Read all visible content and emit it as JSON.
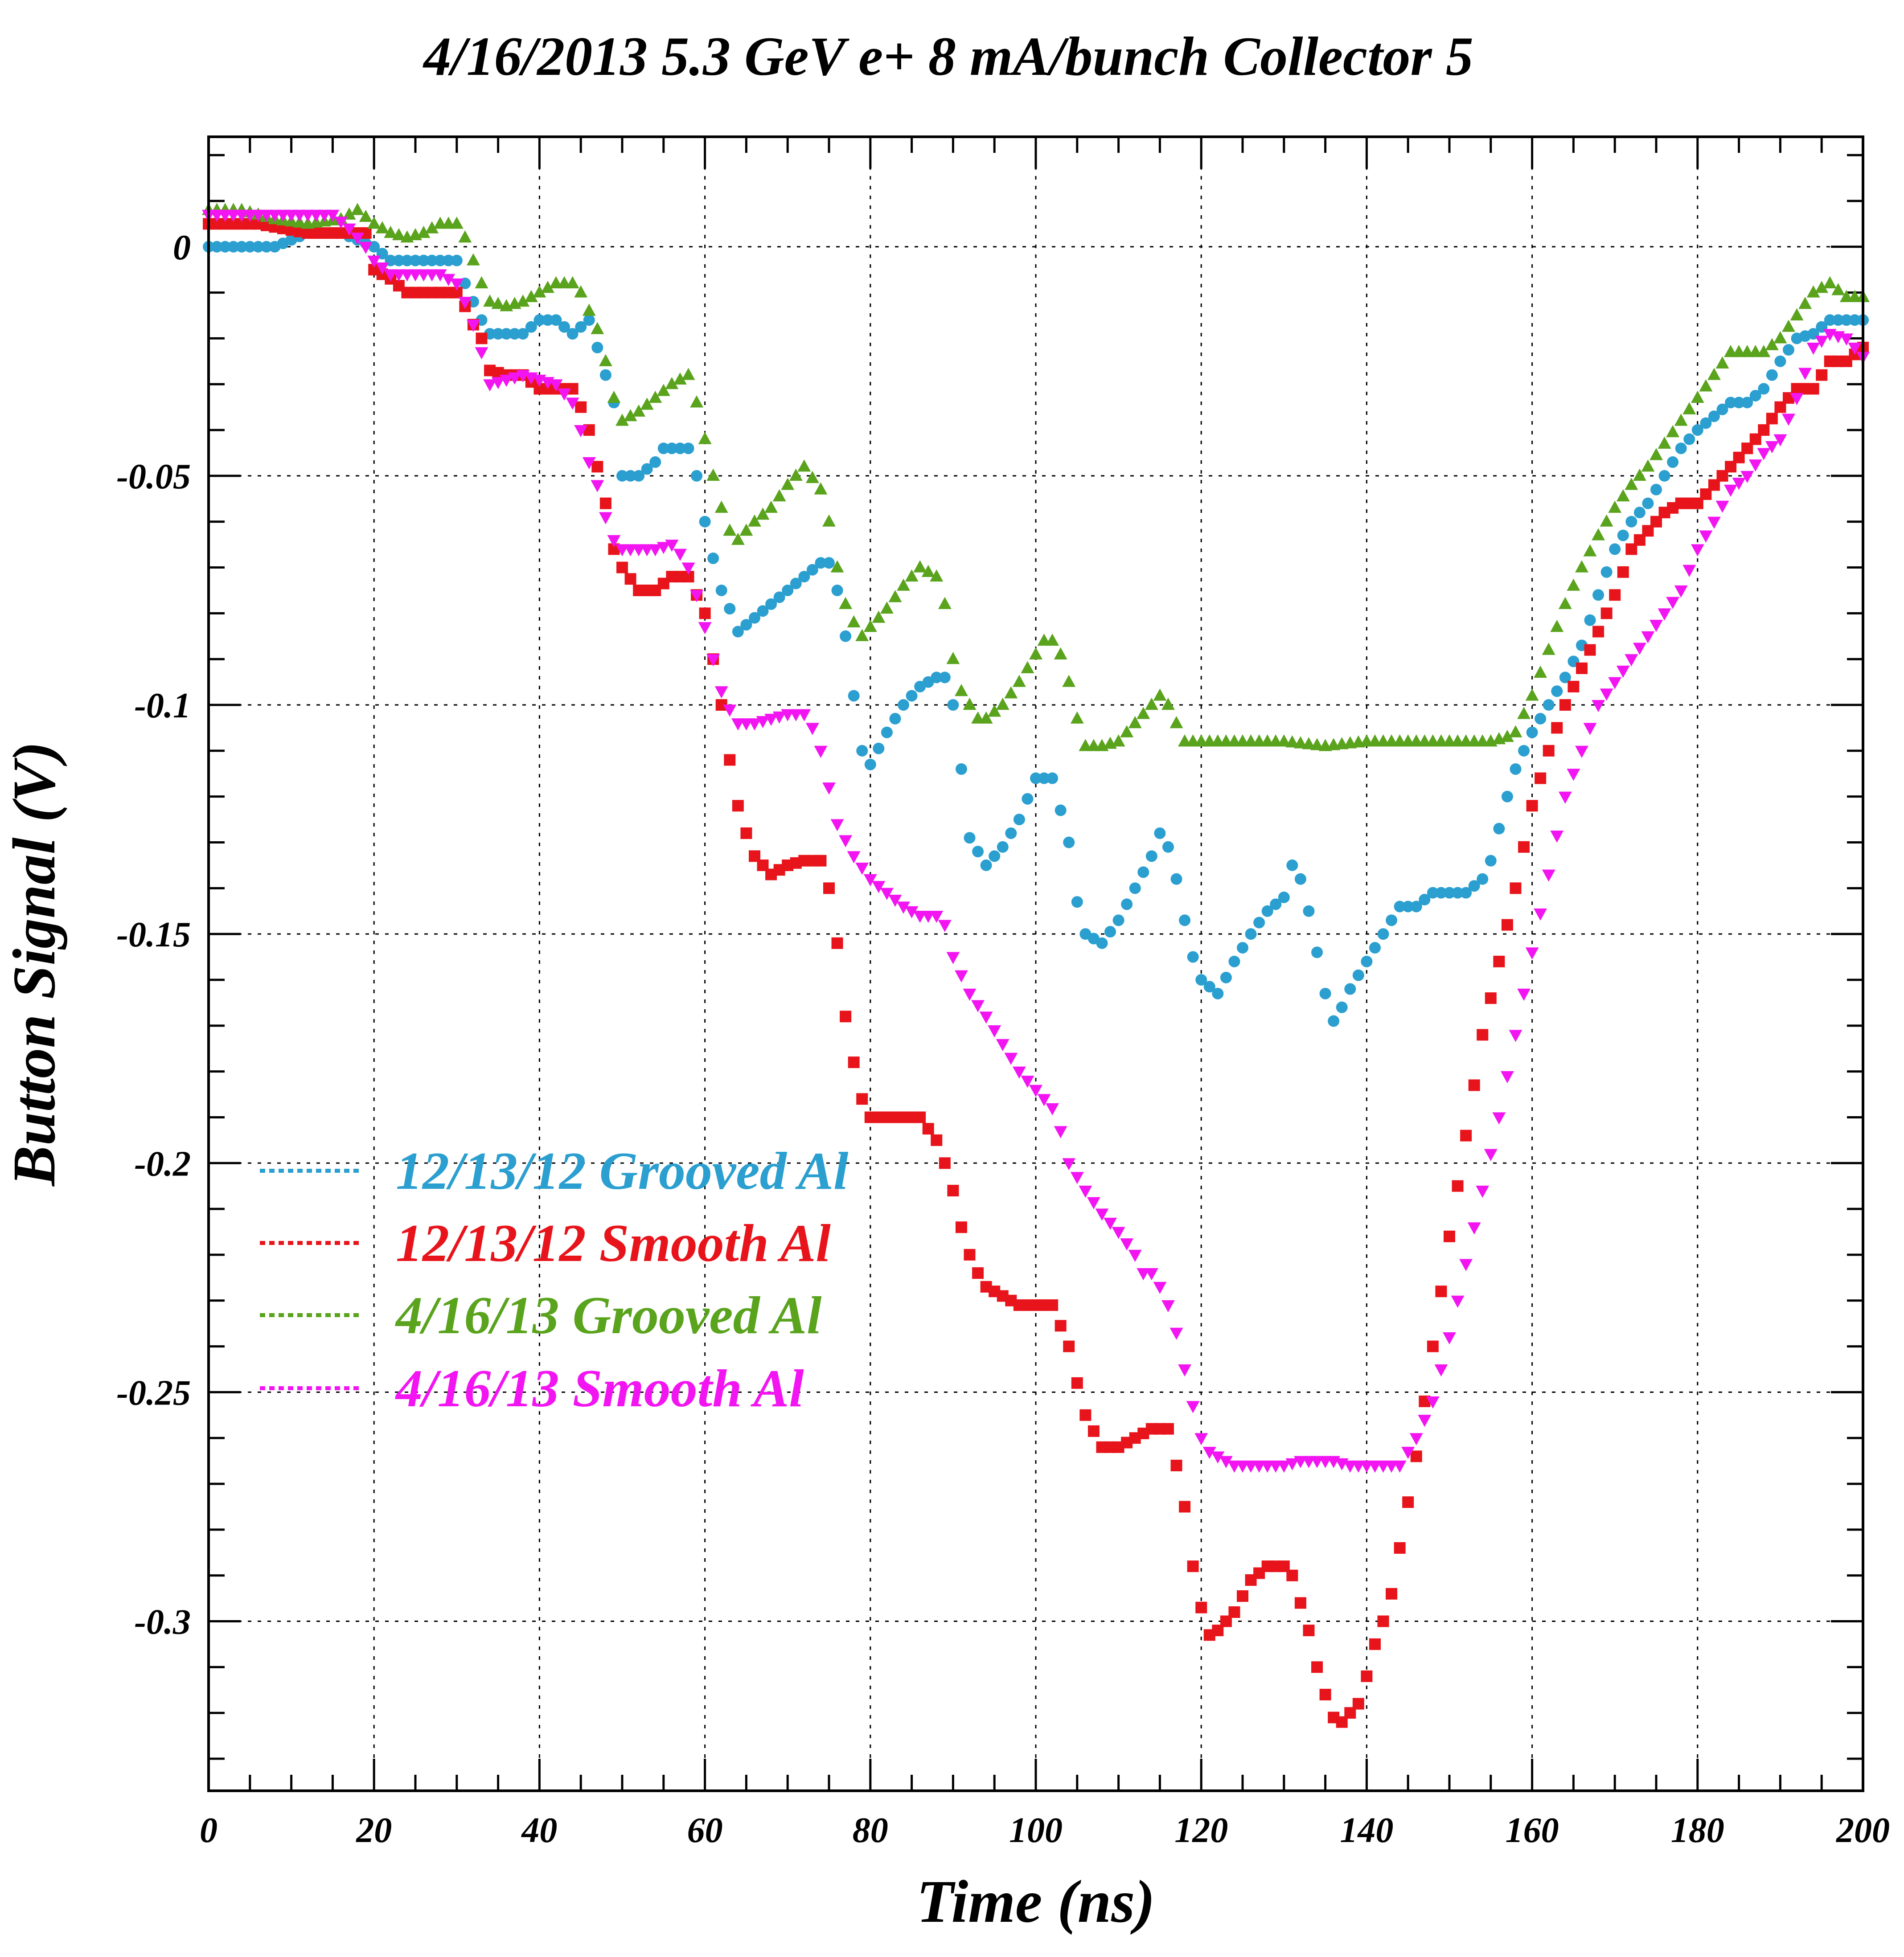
{
  "chart_data": {
    "type": "scatter",
    "title": "4/16/2013 5.3 GeV e+ 8 mA/bunch  Collector 5",
    "xlabel": "Time (ns)",
    "ylabel": "Button Signal (V)",
    "xlim": [
      0,
      200
    ],
    "ylim": [
      -0.337,
      0.024
    ],
    "x_ticks": [
      0,
      20,
      40,
      60,
      80,
      100,
      120,
      140,
      160,
      180,
      200
    ],
    "x_tick_labels": [
      "0",
      "20",
      "40",
      "60",
      "80",
      "100",
      "120",
      "140",
      "160",
      "180",
      "200"
    ],
    "y_ticks": [
      0,
      -0.05,
      -0.1,
      -0.15,
      -0.2,
      -0.25,
      -0.3
    ],
    "y_tick_labels": [
      "0",
      "-0.05",
      "-0.1",
      "-0.15",
      "-0.2",
      "-0.25",
      "-0.3"
    ],
    "grid": true,
    "legend_position": "lower-left",
    "series": [
      {
        "name": "12/13/12 Grooved Al",
        "color": "#2b9fd0",
        "marker": "circle",
        "x": [
          0,
          4,
          8,
          12,
          16,
          20,
          22,
          24,
          26,
          28,
          30,
          31,
          32,
          33,
          34,
          36,
          38,
          40,
          42,
          44,
          46,
          47,
          48,
          49,
          50,
          52,
          54,
          55,
          56,
          58,
          59,
          60,
          61,
          62,
          63,
          64,
          66,
          68,
          70,
          72,
          74,
          75,
          76,
          77,
          78,
          79,
          80,
          82,
          84,
          86,
          88,
          89,
          90,
          91,
          92,
          94,
          96,
          98,
          100,
          102,
          103,
          104,
          105,
          106,
          108,
          110,
          112,
          114,
          115,
          116,
          117,
          118,
          119,
          120,
          122,
          124,
          126,
          128,
          130,
          131,
          132,
          133,
          134,
          135,
          136,
          137,
          138,
          140,
          142,
          144,
          146,
          148,
          150,
          152,
          154,
          155,
          156,
          157,
          158,
          160,
          162,
          164,
          166,
          168,
          170,
          172,
          174,
          176,
          178,
          180,
          182,
          184,
          186,
          188,
          190,
          192,
          194,
          196,
          198,
          200
        ],
        "y": [
          0,
          0,
          0,
          0.003,
          0.003,
          0,
          -0.003,
          -0.003,
          -0.003,
          -0.003,
          -0.003,
          -0.008,
          -0.012,
          -0.016,
          -0.019,
          -0.019,
          -0.019,
          -0.016,
          -0.016,
          -0.019,
          -0.016,
          -0.022,
          -0.028,
          -0.034,
          -0.05,
          -0.05,
          -0.047,
          -0.044,
          -0.044,
          -0.044,
          -0.05,
          -0.06,
          -0.068,
          -0.075,
          -0.079,
          -0.084,
          -0.081,
          -0.078,
          -0.075,
          -0.072,
          -0.069,
          -0.069,
          -0.075,
          -0.085,
          -0.098,
          -0.11,
          -0.113,
          -0.106,
          -0.1,
          -0.096,
          -0.094,
          -0.094,
          -0.1,
          -0.114,
          -0.129,
          -0.135,
          -0.131,
          -0.125,
          -0.116,
          -0.116,
          -0.123,
          -0.13,
          -0.143,
          -0.15,
          -0.152,
          -0.147,
          -0.14,
          -0.133,
          -0.128,
          -0.131,
          -0.138,
          -0.147,
          -0.155,
          -0.16,
          -0.163,
          -0.156,
          -0.15,
          -0.145,
          -0.142,
          -0.135,
          -0.138,
          -0.145,
          -0.154,
          -0.163,
          -0.169,
          -0.166,
          -0.162,
          -0.156,
          -0.15,
          -0.144,
          -0.144,
          -0.141,
          -0.141,
          -0.141,
          -0.138,
          -0.134,
          -0.127,
          -0.12,
          -0.114,
          -0.106,
          -0.1,
          -0.094,
          -0.087,
          -0.076,
          -0.066,
          -0.06,
          -0.056,
          -0.05,
          -0.044,
          -0.04,
          -0.037,
          -0.034,
          -0.034,
          -0.031,
          -0.025,
          -0.02,
          -0.019,
          -0.016,
          -0.016,
          -0.016
        ]
      },
      {
        "name": "12/13/12 Smooth Al",
        "color": "#e8141b",
        "marker": "square",
        "x": [
          0,
          6,
          12,
          16,
          19,
          20,
          22,
          24,
          26,
          28,
          30,
          31,
          32,
          33,
          34,
          36,
          38,
          40,
          42,
          44,
          45,
          46,
          47,
          48,
          49,
          50,
          52,
          54,
          56,
          58,
          60,
          61,
          62,
          63,
          64,
          65,
          66,
          67,
          68,
          70,
          72,
          74,
          75,
          76,
          77,
          78,
          79,
          80,
          82,
          84,
          86,
          88,
          89,
          90,
          91,
          92,
          93,
          94,
          96,
          98,
          100,
          102,
          104,
          105,
          106,
          108,
          110,
          112,
          114,
          116,
          117,
          118,
          119,
          120,
          121,
          122,
          124,
          126,
          128,
          130,
          131,
          132,
          133,
          134,
          135,
          136,
          137,
          138,
          139,
          140,
          141,
          142,
          143,
          144,
          145,
          146,
          148,
          150,
          152,
          154,
          156,
          158,
          160,
          162,
          164,
          166,
          168,
          170,
          172,
          174,
          176,
          178,
          180,
          182,
          184,
          186,
          188,
          190,
          192,
          194,
          196,
          198,
          200
        ],
        "y": [
          0.005,
          0.005,
          0.003,
          0.003,
          0.003,
          -0.005,
          -0.007,
          -0.01,
          -0.01,
          -0.01,
          -0.01,
          -0.013,
          -0.017,
          -0.02,
          -0.027,
          -0.028,
          -0.028,
          -0.031,
          -0.031,
          -0.031,
          -0.035,
          -0.04,
          -0.048,
          -0.056,
          -0.066,
          -0.07,
          -0.075,
          -0.075,
          -0.072,
          -0.072,
          -0.08,
          -0.09,
          -0.1,
          -0.112,
          -0.122,
          -0.128,
          -0.133,
          -0.135,
          -0.137,
          -0.135,
          -0.134,
          -0.134,
          -0.14,
          -0.152,
          -0.168,
          -0.178,
          -0.186,
          -0.19,
          -0.19,
          -0.19,
          -0.19,
          -0.195,
          -0.2,
          -0.206,
          -0.214,
          -0.22,
          -0.224,
          -0.227,
          -0.229,
          -0.231,
          -0.231,
          -0.231,
          -0.24,
          -0.248,
          -0.255,
          -0.262,
          -0.262,
          -0.26,
          -0.258,
          -0.258,
          -0.266,
          -0.275,
          -0.288,
          -0.297,
          -0.303,
          -0.302,
          -0.298,
          -0.291,
          -0.288,
          -0.288,
          -0.29,
          -0.296,
          -0.302,
          -0.31,
          -0.316,
          -0.321,
          -0.322,
          -0.32,
          -0.318,
          -0.312,
          -0.305,
          -0.3,
          -0.294,
          -0.284,
          -0.274,
          -0.264,
          -0.24,
          -0.216,
          -0.194,
          -0.172,
          -0.156,
          -0.14,
          -0.122,
          -0.11,
          -0.1,
          -0.092,
          -0.084,
          -0.076,
          -0.066,
          -0.062,
          -0.058,
          -0.056,
          -0.056,
          -0.052,
          -0.048,
          -0.044,
          -0.04,
          -0.035,
          -0.031,
          -0.031,
          -0.025,
          -0.025,
          -0.022
        ]
      },
      {
        "name": "4/16/13 Grooved Al",
        "color": "#5aa31d",
        "marker": "triangle-up",
        "x": [
          0,
          4,
          8,
          12,
          16,
          18,
          20,
          22,
          24,
          26,
          28,
          30,
          31,
          32,
          33,
          34,
          36,
          38,
          40,
          42,
          44,
          45,
          46,
          47,
          48,
          49,
          50,
          52,
          54,
          56,
          58,
          59,
          60,
          61,
          62,
          63,
          64,
          66,
          68,
          70,
          72,
          74,
          75,
          76,
          77,
          78,
          79,
          80,
          82,
          84,
          86,
          88,
          89,
          90,
          91,
          92,
          93,
          94,
          96,
          98,
          100,
          101,
          102,
          103,
          104,
          105,
          106,
          108,
          110,
          112,
          114,
          115,
          116,
          117,
          118,
          120,
          125,
          130,
          135,
          140,
          145,
          150,
          155,
          157,
          158,
          160,
          162,
          164,
          166,
          168,
          170,
          172,
          174,
          176,
          178,
          180,
          182,
          184,
          186,
          188,
          190,
          192,
          194,
          196,
          198,
          200
        ],
        "y": [
          0.008,
          0.008,
          0.006,
          0.005,
          0.006,
          0.008,
          0.005,
          0.003,
          0.002,
          0.003,
          0.005,
          0.005,
          0.002,
          -0.003,
          -0.008,
          -0.012,
          -0.013,
          -0.012,
          -0.01,
          -0.008,
          -0.008,
          -0.01,
          -0.014,
          -0.018,
          -0.025,
          -0.033,
          -0.038,
          -0.036,
          -0.033,
          -0.03,
          -0.028,
          -0.034,
          -0.042,
          -0.05,
          -0.057,
          -0.062,
          -0.064,
          -0.06,
          -0.057,
          -0.052,
          -0.048,
          -0.053,
          -0.06,
          -0.07,
          -0.078,
          -0.082,
          -0.085,
          -0.083,
          -0.079,
          -0.074,
          -0.07,
          -0.072,
          -0.078,
          -0.09,
          -0.097,
          -0.1,
          -0.103,
          -0.103,
          -0.1,
          -0.095,
          -0.089,
          -0.086,
          -0.086,
          -0.089,
          -0.095,
          -0.103,
          -0.109,
          -0.109,
          -0.108,
          -0.104,
          -0.1,
          -0.098,
          -0.1,
          -0.104,
          -0.108,
          -0.108,
          -0.108,
          -0.108,
          -0.109,
          -0.108,
          -0.108,
          -0.108,
          -0.108,
          -0.107,
          -0.106,
          -0.098,
          -0.088,
          -0.078,
          -0.07,
          -0.063,
          -0.057,
          -0.052,
          -0.048,
          -0.043,
          -0.038,
          -0.033,
          -0.028,
          -0.023,
          -0.023,
          -0.023,
          -0.02,
          -0.015,
          -0.01,
          -0.008,
          -0.011,
          -0.011
        ]
      },
      {
        "name": "4/16/13 Smooth Al",
        "color": "#f215f2",
        "marker": "triangle-down",
        "x": [
          0,
          4,
          8,
          12,
          15,
          17,
          19,
          20,
          22,
          24,
          26,
          28,
          30,
          31,
          32,
          33,
          34,
          36,
          38,
          40,
          42,
          44,
          45,
          46,
          47,
          48,
          49,
          50,
          52,
          54,
          56,
          57,
          58,
          59,
          60,
          61,
          62,
          63,
          64,
          66,
          68,
          70,
          72,
          73,
          74,
          75,
          76,
          78,
          80,
          82,
          84,
          86,
          88,
          89,
          90,
          92,
          94,
          96,
          98,
          100,
          102,
          103,
          104,
          106,
          108,
          110,
          112,
          113,
          114,
          115,
          116,
          117,
          118,
          119,
          120,
          121,
          122,
          124,
          126,
          128,
          130,
          132,
          134,
          136,
          138,
          140,
          142,
          144,
          146,
          148,
          150,
          152,
          154,
          156,
          158,
          160,
          162,
          164,
          166,
          168,
          170,
          172,
          174,
          176,
          178,
          180,
          182,
          184,
          186,
          188,
          190,
          192,
          194,
          196,
          198,
          200
        ],
        "y": [
          0.007,
          0.007,
          0.007,
          0.007,
          0.007,
          0.004,
          0,
          -0.003,
          -0.006,
          -0.006,
          -0.006,
          -0.006,
          -0.008,
          -0.012,
          -0.017,
          -0.023,
          -0.03,
          -0.029,
          -0.028,
          -0.029,
          -0.03,
          -0.034,
          -0.04,
          -0.047,
          -0.052,
          -0.059,
          -0.064,
          -0.066,
          -0.066,
          -0.066,
          -0.065,
          -0.067,
          -0.07,
          -0.076,
          -0.083,
          -0.09,
          -0.097,
          -0.101,
          -0.104,
          -0.104,
          -0.103,
          -0.102,
          -0.102,
          -0.105,
          -0.11,
          -0.118,
          -0.126,
          -0.133,
          -0.138,
          -0.141,
          -0.144,
          -0.146,
          -0.146,
          -0.148,
          -0.155,
          -0.163,
          -0.168,
          -0.174,
          -0.18,
          -0.184,
          -0.188,
          -0.193,
          -0.2,
          -0.206,
          -0.211,
          -0.215,
          -0.22,
          -0.224,
          -0.224,
          -0.227,
          -0.231,
          -0.237,
          -0.245,
          -0.253,
          -0.26,
          -0.263,
          -0.264,
          -0.266,
          -0.266,
          -0.266,
          -0.266,
          -0.265,
          -0.265,
          -0.265,
          -0.266,
          -0.266,
          -0.266,
          -0.266,
          -0.26,
          -0.252,
          -0.238,
          -0.222,
          -0.206,
          -0.19,
          -0.172,
          -0.154,
          -0.137,
          -0.12,
          -0.11,
          -0.1,
          -0.095,
          -0.09,
          -0.085,
          -0.08,
          -0.075,
          -0.066,
          -0.06,
          -0.053,
          -0.05,
          -0.045,
          -0.042,
          -0.033,
          -0.022,
          -0.019,
          -0.02,
          -0.024
        ]
      }
    ]
  }
}
